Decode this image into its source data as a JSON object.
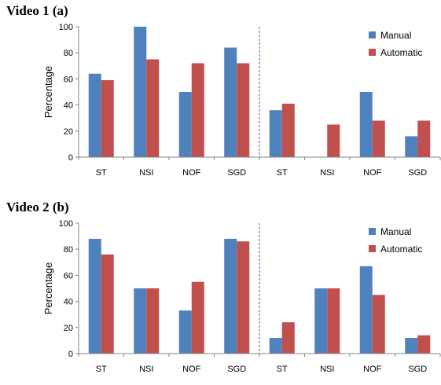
{
  "colors": {
    "manual": "#4f81bd",
    "automatic": "#c0504d",
    "axis": "#868686",
    "divider": "#6b4ea0"
  },
  "chart_data": [
    {
      "type": "bar",
      "title": "Video 1 (a)",
      "ylabel": "Percentage",
      "ylim": [
        0,
        100
      ],
      "yticks": [
        0,
        20,
        40,
        60,
        80,
        100
      ],
      "categories": [
        "ST",
        "NSI",
        "NOF",
        "SGD",
        "ST",
        "NSI",
        "NOF",
        "SGD"
      ],
      "divider_after_index": 3,
      "legend_position": "top-right",
      "series": [
        {
          "name": "Manual",
          "values": [
            64,
            100,
            50,
            84,
            36,
            0,
            50,
            16
          ]
        },
        {
          "name": "Automatic",
          "values": [
            59,
            75,
            72,
            72,
            41,
            25,
            28,
            28
          ]
        }
      ]
    },
    {
      "type": "bar",
      "title": "Video 2 (b)",
      "ylabel": "Percentage",
      "ylim": [
        0,
        100
      ],
      "yticks": [
        0,
        20,
        40,
        60,
        80,
        100
      ],
      "categories": [
        "ST",
        "NSI",
        "NOF",
        "SGD",
        "ST",
        "NSI",
        "NOF",
        "SGD"
      ],
      "divider_after_index": 3,
      "legend_position": "top-right",
      "series": [
        {
          "name": "Manual",
          "values": [
            88,
            50,
            33,
            88,
            12,
            50,
            67,
            12
          ]
        },
        {
          "name": "Automatic",
          "values": [
            76,
            50,
            55,
            86,
            24,
            50,
            45,
            14
          ]
        }
      ]
    }
  ]
}
